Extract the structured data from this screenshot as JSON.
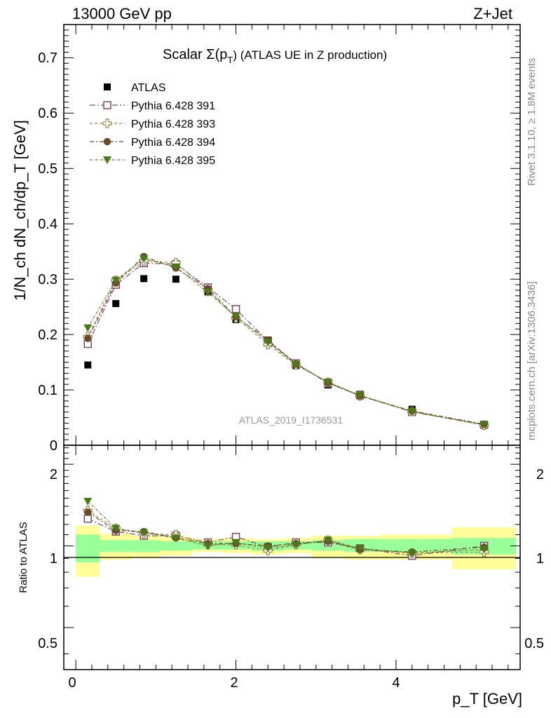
{
  "header": {
    "left": "13000 GeV pp",
    "right": "Z+Jet"
  },
  "side_labels": {
    "rivet": "Rivet 3.1.10, ≥ 1.8M events",
    "mcplots": "mcplots.cern.ch [arXiv:1306.3436]"
  },
  "main_plot": {
    "title_prefix": "Scalar Σ(p",
    "title_sub": "T",
    "title_suffix": ") (ATLAS UE in Z production)",
    "ylabel": "1/N_ch dN_ch/dp_T [GeV]",
    "watermark": "ATLAS_2019_I1736531",
    "y_ticks": [
      "0.1",
      "0.2",
      "0.3",
      "0.4",
      "0.5",
      "0.6",
      "0.7"
    ],
    "y_zero_label": "0"
  },
  "ratio_plot": {
    "ylabel": "Ratio to ATLAS",
    "y_ticks": [
      "0.5",
      "1",
      "2"
    ]
  },
  "x_axis": {
    "label": "p_T [GeV]",
    "ticks": [
      "0",
      "2",
      "4"
    ]
  },
  "legend": [
    {
      "label": "ATLAS",
      "marker": "filled-square",
      "color": "#000000"
    },
    {
      "label": "Pythia 6.428 391",
      "marker": "open-square",
      "color": "#7a4a66"
    },
    {
      "label": "Pythia 6.428 393",
      "marker": "open-cross",
      "color": "#9a8a50"
    },
    {
      "label": "Pythia 6.428 394",
      "marker": "filled-circle",
      "color": "#6b4a2a"
    },
    {
      "label": "Pythia 6.428 395",
      "marker": "filled-triangle-down",
      "color": "#4a7a18"
    }
  ],
  "chart_data": [
    {
      "type": "scatter",
      "title": "Scalar Σ(pT) (ATLAS UE in Z production)",
      "xlabel": "pT [GeV]",
      "ylabel": "1/Nch dNch/dpT [GeV]",
      "xlim": [
        -0.15,
        5.55
      ],
      "ylim": [
        0,
        0.76
      ],
      "x": [
        0.15,
        0.5,
        0.85,
        1.25,
        1.65,
        2.0,
        2.4,
        2.75,
        3.15,
        3.55,
        4.2,
        5.1
      ],
      "series": [
        {
          "name": "ATLAS",
          "values": [
            0.145,
            0.256,
            0.301,
            0.3,
            0.277,
            0.227,
            0.19,
            0.144,
            0.109,
            0.092,
            0.065,
            0.038
          ]
        },
        {
          "name": "Pythia 6.428 391",
          "values": [
            0.183,
            0.29,
            0.329,
            0.327,
            0.285,
            0.246,
            0.188,
            0.148,
            0.112,
            0.09,
            0.06,
            0.037
          ]
        },
        {
          "name": "Pythia 6.428 393",
          "values": [
            0.196,
            0.298,
            0.333,
            0.33,
            0.28,
            0.23,
            0.182,
            0.145,
            0.114,
            0.089,
            0.061,
            0.036
          ]
        },
        {
          "name": "Pythia 6.428 394",
          "values": [
            0.193,
            0.293,
            0.341,
            0.32,
            0.283,
            0.232,
            0.19,
            0.147,
            0.113,
            0.089,
            0.062,
            0.038
          ]
        },
        {
          "name": "Pythia 6.428 395",
          "values": [
            0.212,
            0.298,
            0.337,
            0.322,
            0.276,
            0.233,
            0.186,
            0.146,
            0.114,
            0.09,
            0.061,
            0.037
          ]
        }
      ]
    },
    {
      "type": "scatter",
      "ylabel": "Ratio to ATLAS",
      "xlabel": "pT [GeV]",
      "xlim": [
        -0.15,
        5.55
      ],
      "ylim": [
        0.35,
        2.35
      ],
      "log_y": true,
      "x": [
        0.15,
        0.5,
        0.85,
        1.25,
        1.65,
        2.0,
        2.4,
        2.75,
        3.15,
        3.55,
        4.2,
        5.1
      ],
      "series": [
        {
          "name": "Pythia 6.428 391",
          "values": [
            1.26,
            1.13,
            1.09,
            1.09,
            1.03,
            1.08,
            0.99,
            1.03,
            1.03,
            0.98,
            0.92,
            1.0
          ]
        },
        {
          "name": "Pythia 6.428 393",
          "values": [
            1.35,
            1.16,
            1.11,
            1.1,
            1.01,
            1.01,
            0.96,
            1.01,
            1.05,
            0.97,
            0.94,
            0.95
          ]
        },
        {
          "name": "Pythia 6.428 394",
          "values": [
            1.33,
            1.14,
            1.13,
            1.07,
            1.02,
            1.02,
            1.0,
            1.02,
            1.04,
            0.97,
            0.95,
            0.99
          ]
        },
        {
          "name": "Pythia 6.428 395",
          "values": [
            1.46,
            1.16,
            1.12,
            1.07,
            1.0,
            1.03,
            0.98,
            1.01,
            1.05,
            0.98,
            0.94,
            0.97
          ]
        }
      ],
      "bands": {
        "x_edges": [
          0.0,
          0.3,
          0.7,
          1.05,
          1.45,
          1.85,
          2.2,
          2.6,
          2.95,
          3.35,
          3.8,
          4.7,
          5.5
        ],
        "inner_low": [
          0.87,
          0.95,
          0.95,
          0.96,
          0.97,
          0.97,
          0.96,
          0.97,
          0.96,
          0.95,
          0.95,
          0.93
        ],
        "inner_high": [
          1.1,
          1.05,
          1.05,
          1.04,
          1.04,
          1.04,
          1.04,
          1.04,
          1.05,
          1.06,
          1.06,
          1.07
        ],
        "outer_low": [
          0.77,
          0.89,
          0.9,
          0.92,
          0.95,
          0.94,
          0.93,
          0.94,
          0.9,
          0.89,
          0.89,
          0.82
        ],
        "outer_high": [
          1.19,
          1.11,
          1.09,
          1.08,
          1.06,
          1.07,
          1.06,
          1.07,
          1.09,
          1.09,
          1.1,
          1.17
        ]
      }
    }
  ]
}
